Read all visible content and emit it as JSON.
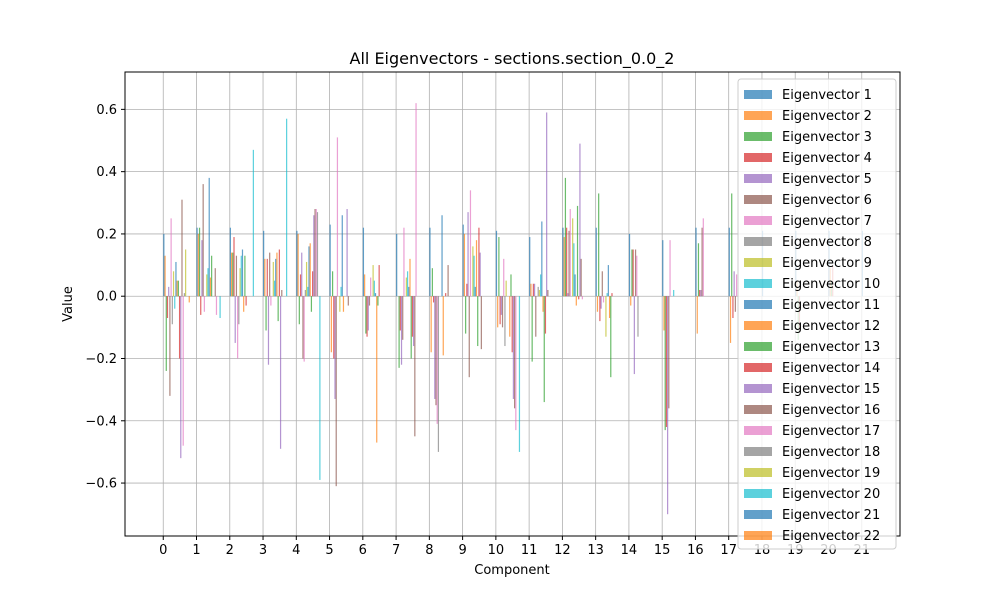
{
  "chart_data": {
    "type": "bar",
    "title": "All Eigenvectors - sections.section_0.0_2",
    "xlabel": "Component",
    "ylabel": "Value",
    "ylim": [
      -0.77,
      0.72
    ],
    "xlim": [
      -1.15,
      22.15
    ],
    "yticks": [
      -0.6,
      -0.4,
      -0.2,
      0.0,
      0.2,
      0.4,
      0.6
    ],
    "ytick_labels": [
      "−0.6",
      "−0.4",
      "−0.2",
      "0.0",
      "0.2",
      "0.4",
      "0.6"
    ],
    "xtick_labels": [
      "0",
      "1",
      "2",
      "3",
      "4",
      "5",
      "6",
      "7",
      "8",
      "9",
      "10",
      "11",
      "12",
      "13",
      "14",
      "15",
      "16",
      "17",
      "18",
      "19",
      "20",
      "21"
    ],
    "grid": true,
    "legend_position": "upper-right",
    "bar_alpha": 0.7,
    "colors": [
      "#1f77b4",
      "#ff7f0e",
      "#2ca02c",
      "#d62728",
      "#9467bd",
      "#8c564b",
      "#e377c2",
      "#7f7f7f",
      "#bcbd22",
      "#17becf"
    ],
    "series": [
      {
        "name": "Eigenvector 1",
        "values": [
          0.2,
          0.22,
          0.22,
          0.21,
          0.21,
          0.23,
          0.22,
          0.2,
          0.22,
          0.23,
          0.21,
          0.19,
          0.22,
          0.22,
          0.2,
          0.18,
          0.22,
          0.22,
          0.21,
          0.21,
          0.21,
          0.21
        ]
      },
      {
        "name": "Eigenvector 2",
        "values": [
          0.13,
          0.2,
          0.14,
          0.12,
          0.2,
          -0.18,
          0.07,
          0.0,
          -0.18,
          0.2,
          -0.1,
          0.04,
          0.19,
          -0.05,
          -0.03,
          -0.11,
          -0.12,
          -0.15,
          0.0,
          0.05,
          0.09,
          0.0
        ]
      },
      {
        "name": "Eigenvector 3",
        "values": [
          -0.24,
          0.22,
          0.14,
          -0.11,
          -0.09,
          0.08,
          -0.12,
          -0.23,
          0.09,
          -0.12,
          0.19,
          -0.21,
          0.38,
          0.33,
          0.15,
          -0.43,
          0.17,
          0.33,
          0.0,
          -0.14,
          0.05,
          0.0
        ]
      },
      {
        "name": "Eigenvector 4",
        "values": [
          -0.07,
          -0.06,
          0.19,
          0.12,
          0.07,
          -0.2,
          -0.13,
          -0.11,
          -0.02,
          0.04,
          -0.09,
          0.04,
          0.22,
          -0.08,
          0.15,
          -0.42,
          0.02,
          -0.07,
          0.0,
          -0.11,
          0.1,
          0.0
        ]
      },
      {
        "name": "Eigenvector 5",
        "values": [
          0.03,
          0.18,
          -0.15,
          -0.22,
          0.14,
          -0.33,
          -0.11,
          -0.22,
          -0.33,
          0.27,
          -0.06,
          0.04,
          0.01,
          -0.04,
          -0.25,
          -0.7,
          0.02,
          0.08,
          0.0,
          0.0,
          0.0,
          0.0
        ]
      },
      {
        "name": "Eigenvector 6",
        "values": [
          -0.32,
          0.36,
          0.13,
          0.14,
          -0.2,
          -0.61,
          -0.03,
          -0.14,
          -0.35,
          -0.26,
          -0.1,
          -0.13,
          0.21,
          0.08,
          0.15,
          -0.36,
          0.22,
          -0.05,
          0.0,
          0.0,
          0.0,
          0.0
        ]
      },
      {
        "name": "Eigenvector 7",
        "values": [
          0.25,
          -0.05,
          -0.2,
          -0.03,
          -0.21,
          0.51,
          0.06,
          0.22,
          -0.41,
          0.34,
          0.12,
          0.0,
          0.28,
          -0.02,
          0.13,
          0.18,
          0.25,
          0.07,
          0.0,
          0.0,
          0.0,
          0.0
        ]
      },
      {
        "name": "Eigenvector 8",
        "values": [
          -0.09,
          0.0,
          -0.09,
          0.0,
          0.02,
          0.0,
          0.0,
          0.0,
          -0.5,
          0.0,
          -0.16,
          0.03,
          0.0,
          0.0,
          -0.13,
          0.0,
          0.0,
          0.0,
          0.0,
          0.0,
          0.0,
          0.0
        ]
      },
      {
        "name": "Eigenvector 9",
        "values": [
          0.08,
          0.07,
          0.09,
          0.11,
          0.11,
          -0.05,
          0.1,
          0.06,
          0.0,
          0.16,
          0.05,
          0.02,
          0.25,
          -0.13,
          0.0,
          0.0,
          0.0,
          0.0,
          0.0,
          0.0,
          0.0,
          0.0
        ]
      },
      {
        "name": "Eigenvector 10",
        "values": [
          -0.04,
          0.09,
          0.13,
          0.05,
          0.03,
          0.03,
          0.05,
          0.08,
          0.0,
          0.13,
          0.0,
          0.07,
          0.17,
          0.01,
          0.0,
          0.02,
          0.0,
          0.0,
          0.0,
          0.0,
          0.0,
          0.0
        ]
      },
      {
        "name": "Eigenvector 11",
        "values": [
          0.11,
          0.38,
          0.15,
          0.12,
          0.16,
          0.26,
          0.01,
          0.03,
          0.26,
          0.03,
          0.0,
          0.24,
          0.07,
          0.1,
          0.0,
          0.0,
          0.0,
          0.0,
          0.0,
          0.0,
          0.0,
          0.0
        ]
      },
      {
        "name": "Eigenvector 12",
        "values": [
          0.05,
          0.06,
          -0.05,
          0.14,
          0.17,
          -0.05,
          -0.47,
          0.12,
          -0.19,
          0.18,
          -0.13,
          -0.05,
          -0.03,
          -0.07,
          0.0,
          0.0,
          0.0,
          0.0,
          0.0,
          0.0,
          0.0,
          0.0
        ]
      },
      {
        "name": "Eigenvector 13",
        "values": [
          0.05,
          0.13,
          0.13,
          -0.08,
          -0.05,
          0.0,
          -0.03,
          -0.2,
          0.0,
          -0.16,
          0.07,
          -0.34,
          0.29,
          -0.26,
          0.0,
          0.0,
          0.0,
          0.0,
          0.0,
          0.0,
          0.0,
          0.0
        ]
      },
      {
        "name": "Eigenvector 14",
        "values": [
          -0.2,
          0.0,
          -0.03,
          0.15,
          0.08,
          0.0,
          0.1,
          -0.13,
          0.01,
          0.22,
          -0.18,
          -0.12,
          -0.01,
          0.01,
          0.0,
          0.0,
          0.0,
          0.0,
          0.0,
          0.0,
          0.0,
          0.0
        ]
      },
      {
        "name": "Eigenvector 15",
        "values": [
          -0.52,
          0.0,
          0.0,
          -0.49,
          0.26,
          0.28,
          0.0,
          -0.16,
          0.0,
          0.14,
          -0.33,
          0.59,
          0.49,
          0.0,
          0.0,
          0.0,
          0.0,
          0.0,
          0.0,
          0.0,
          0.0,
          0.0
        ]
      },
      {
        "name": "Eigenvector 16",
        "values": [
          0.31,
          0.09,
          0.0,
          0.02,
          0.28,
          -0.03,
          0.0,
          -0.45,
          0.1,
          -0.17,
          -0.36,
          0.02,
          0.12,
          0.0,
          0.0,
          0.0,
          0.0,
          0.0,
          0.0,
          0.0,
          0.0,
          0.0
        ]
      },
      {
        "name": "Eigenvector 17",
        "values": [
          -0.48,
          -0.06,
          0.0,
          0.0,
          0.28,
          0.0,
          0.0,
          0.62,
          0.0,
          0.0,
          -0.43,
          0.0,
          -0.01,
          0.0,
          0.0,
          0.0,
          0.0,
          0.0,
          0.0,
          0.0,
          0.0,
          0.0
        ]
      },
      {
        "name": "Eigenvector 18",
        "values": [
          0.01,
          0.0,
          0.0,
          0.0,
          0.27,
          0.0,
          0.0,
          0.0,
          0.0,
          0.0,
          0.0,
          0.0,
          0.0,
          0.0,
          0.0,
          0.0,
          0.0,
          0.0,
          0.0,
          0.0,
          0.0,
          0.0
        ]
      },
      {
        "name": "Eigenvector 19",
        "values": [
          0.15,
          0.0,
          0.0,
          0.0,
          0.0,
          0.0,
          0.0,
          0.0,
          0.0,
          0.0,
          0.0,
          0.0,
          0.0,
          0.0,
          0.0,
          0.0,
          0.0,
          0.0,
          0.0,
          0.0,
          0.0,
          0.0
        ]
      },
      {
        "name": "Eigenvector 20",
        "values": [
          0.0,
          -0.07,
          0.47,
          0.57,
          -0.59,
          0.0,
          0.0,
          0.0,
          0.0,
          0.0,
          -0.5,
          0.0,
          0.0,
          0.0,
          0.0,
          0.0,
          0.0,
          0.0,
          0.0,
          0.0,
          0.0,
          0.0
        ]
      },
      {
        "name": "Eigenvector 21",
        "values": [
          0.0,
          0.0,
          0.0,
          0.0,
          0.0,
          0.0,
          0.0,
          0.0,
          0.0,
          0.0,
          0.0,
          0.0,
          0.0,
          0.0,
          0.0,
          0.0,
          0.0,
          0.0,
          0.0,
          0.0,
          0.0,
          0.0
        ]
      },
      {
        "name": "Eigenvector 22",
        "values": [
          -0.02,
          0.0,
          0.0,
          0.0,
          0.0,
          0.0,
          0.0,
          0.0,
          0.0,
          0.0,
          0.0,
          0.0,
          0.0,
          0.0,
          0.0,
          0.0,
          0.0,
          0.0,
          0.0,
          0.0,
          0.0,
          0.0
        ]
      }
    ]
  }
}
